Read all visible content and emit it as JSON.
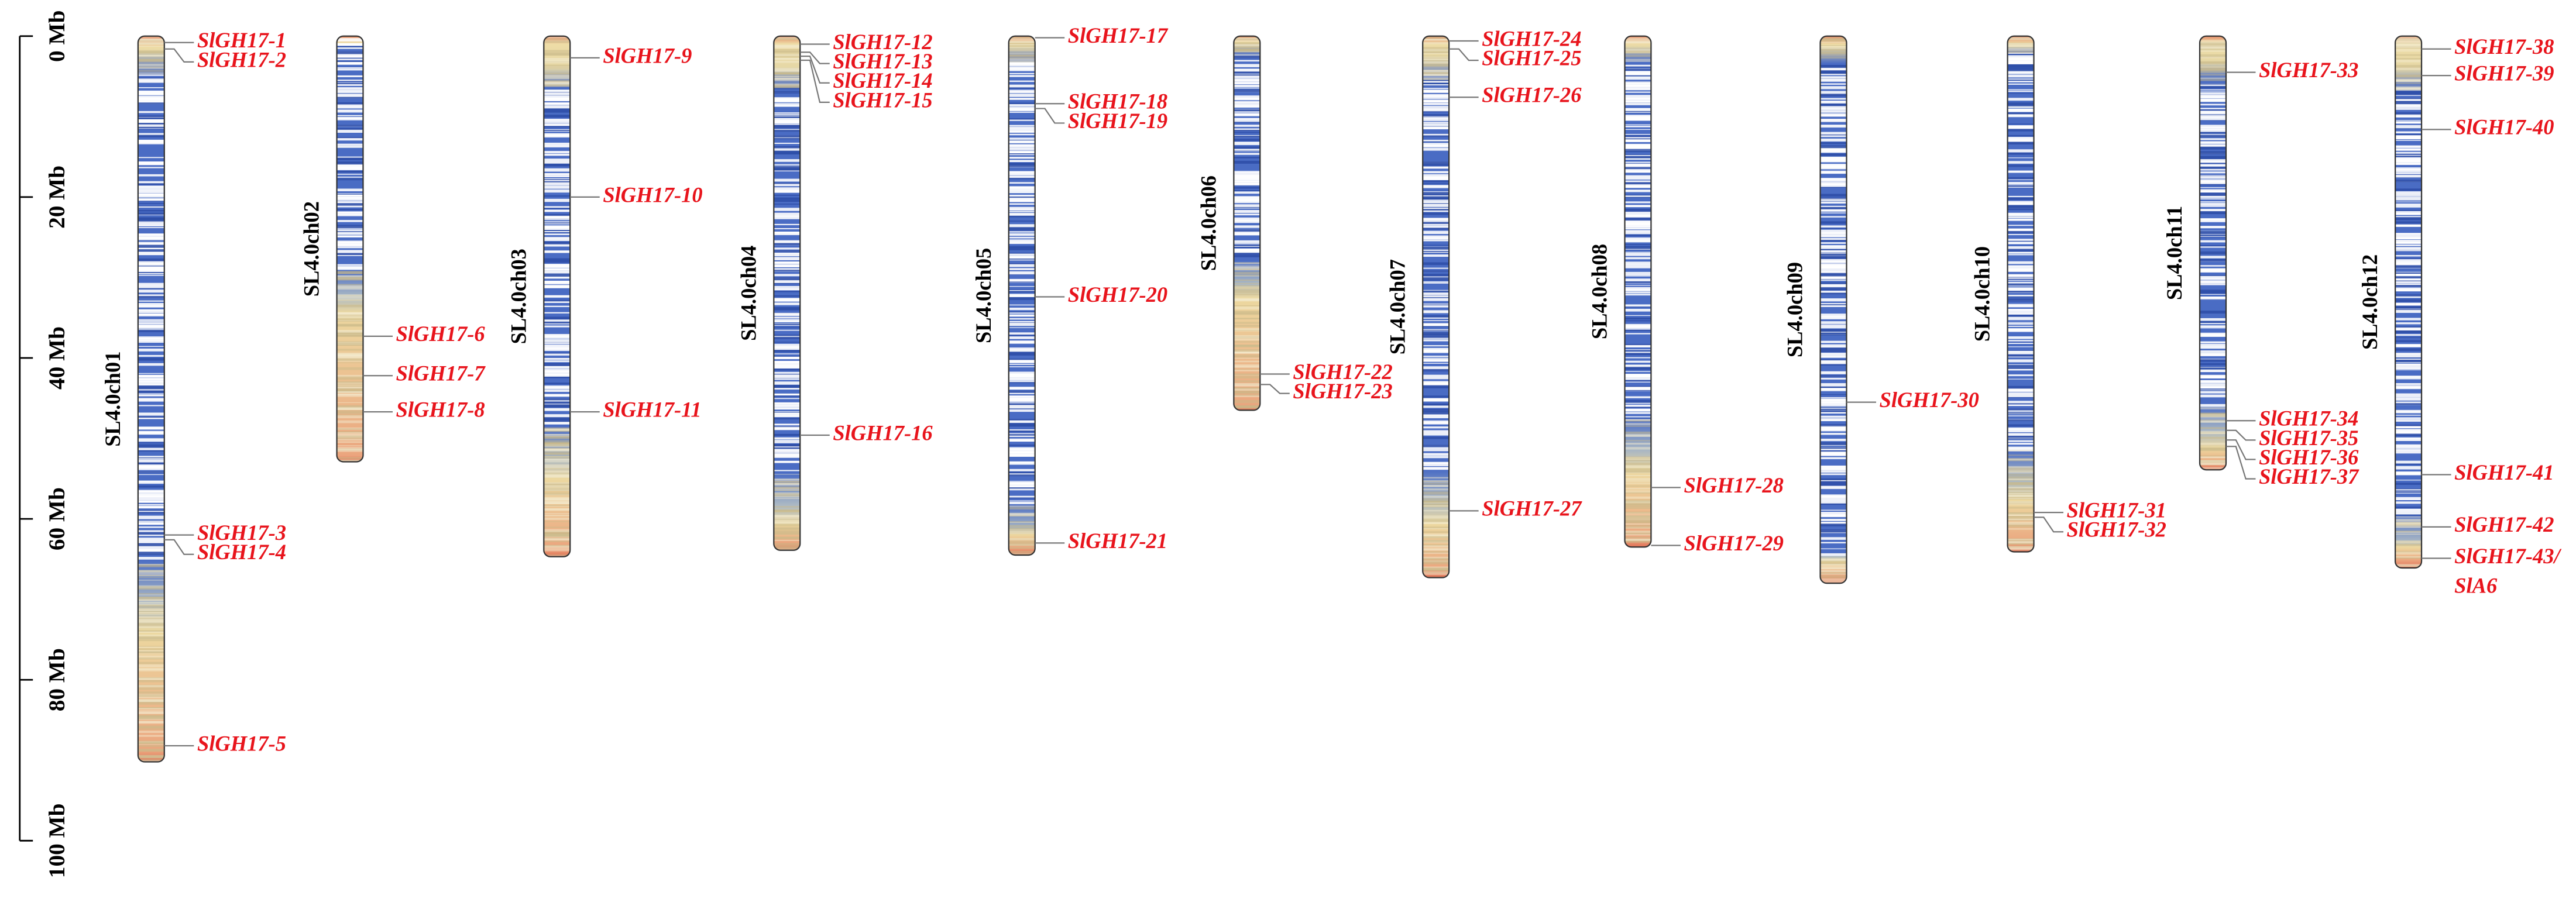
{
  "axis": {
    "range": [
      0,
      100
    ],
    "ticks": [
      {
        "value": 0,
        "label": "0 Mb"
      },
      {
        "value": 20,
        "label": "20 Mb"
      },
      {
        "value": 40,
        "label": "40 Mb"
      },
      {
        "value": 60,
        "label": "60 Mb"
      },
      {
        "value": 80,
        "label": "80 Mb"
      },
      {
        "value": 100,
        "label": "100 Mb"
      }
    ]
  },
  "chromosomes": [
    {
      "name": "SL4.0ch01",
      "length": 90.2,
      "genes": [
        {
          "label": "SlGH17-1",
          "position": 0.8
        },
        {
          "label": "SlGH17-2",
          "position": 1.6
        },
        {
          "label": "SlGH17-3",
          "position": 62
        },
        {
          "label": "SlGH17-4",
          "position": 62.6
        },
        {
          "label": "SlGH17-5",
          "position": 88.2
        }
      ]
    },
    {
      "name": "SL4.0ch02",
      "length": 52.9,
      "genes": [
        {
          "label": "SlGH17-6",
          "position": 37.3
        },
        {
          "label": "SlGH17-7",
          "position": 42.2
        },
        {
          "label": "SlGH17-8",
          "position": 46.7
        }
      ]
    },
    {
      "name": "SL4.0ch03",
      "length": 64.7,
      "genes": [
        {
          "label": "SlGH17-9",
          "position": 2.7
        },
        {
          "label": "SlGH17-10",
          "position": 20
        },
        {
          "label": "SlGH17-11",
          "position": 46.7
        }
      ]
    },
    {
      "name": "SL4.0ch04",
      "length": 63.9,
      "genes": [
        {
          "label": "SlGH17-12",
          "position": 1
        },
        {
          "label": "SlGH17-13",
          "position": 2
        },
        {
          "label": "SlGH17-14",
          "position": 2.5
        },
        {
          "label": "SlGH17-15",
          "position": 3
        },
        {
          "label": "SlGH17-16",
          "position": 49.6
        }
      ]
    },
    {
      "name": "SL4.0ch05",
      "length": 64.5,
      "genes": [
        {
          "label": "SlGH17-17",
          "position": 0.2
        },
        {
          "label": "SlGH17-18",
          "position": 8.4
        },
        {
          "label": "SlGH17-19",
          "position": 9
        },
        {
          "label": "SlGH17-20",
          "position": 32.4
        },
        {
          "label": "SlGH17-21",
          "position": 63
        }
      ]
    },
    {
      "name": "SL4.0ch06",
      "length": 46.5,
      "genes": [
        {
          "label": "SlGH17-22",
          "position": 42
        },
        {
          "label": "SlGH17-23",
          "position": 43.3
        }
      ]
    },
    {
      "name": "SL4.0ch07",
      "length": 67.3,
      "genes": [
        {
          "label": "SlGH17-24",
          "position": 0.6
        },
        {
          "label": "SlGH17-25",
          "position": 1.6
        },
        {
          "label": "SlGH17-26",
          "position": 7.6
        },
        {
          "label": "SlGH17-27",
          "position": 59
        }
      ]
    },
    {
      "name": "SL4.0ch08",
      "length": 63.5,
      "genes": [
        {
          "label": "SlGH17-28",
          "position": 56.1
        },
        {
          "label": "SlGH17-29",
          "position": 63.3
        }
      ]
    },
    {
      "name": "SL4.0ch09",
      "length": 68,
      "genes": [
        {
          "label": "SlGH17-30",
          "position": 45.5
        }
      ]
    },
    {
      "name": "SL4.0ch10",
      "length": 64.1,
      "genes": [
        {
          "label": "SlGH17-31",
          "position": 59.2
        },
        {
          "label": "SlGH17-32",
          "position": 59.8
        }
      ]
    },
    {
      "name": "SL4.0ch11",
      "length": 53.9,
      "genes": [
        {
          "label": "SlGH17-33",
          "position": 4.5
        },
        {
          "label": "SlGH17-34",
          "position": 47.8
        },
        {
          "label": "SlGH17-35",
          "position": 49
        },
        {
          "label": "SlGH17-36",
          "position": 50.2
        },
        {
          "label": "SlGH17-37",
          "position": 51
        }
      ]
    },
    {
      "name": "SL4.0ch12",
      "length": 66.1,
      "genes": [
        {
          "label": "SlGH17-38",
          "position": 1.6
        },
        {
          "label": "SlGH17-39",
          "position": 4.9
        },
        {
          "label": "SlGH17-40",
          "position": 11.6
        },
        {
          "label": "SlGH17-41",
          "position": 54.5
        },
        {
          "label": "SlGH17-42",
          "position": 61
        },
        {
          "label": "SlGH17-43/",
          "label_line2": "SlA6",
          "position": 64.9
        }
      ]
    }
  ]
}
